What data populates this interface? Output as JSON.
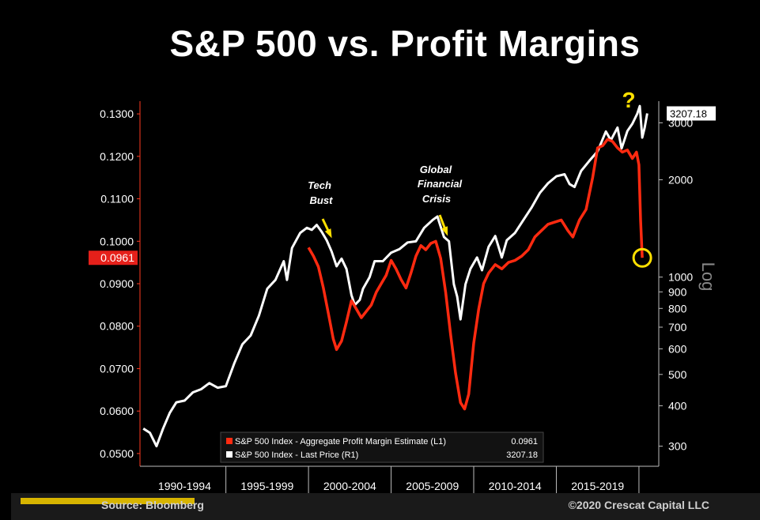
{
  "title": "S&P 500 vs. Profit Margins",
  "footer": {
    "source": "Source: Bloomberg",
    "copyright": "©2020 Crescat Capital LLC"
  },
  "colors": {
    "margin": "#ff2a10",
    "price": "#ffffff",
    "annotation": "#ffe000",
    "axis": "#ff3a20"
  },
  "chart_data": {
    "type": "line",
    "x_categories": [
      "1990-1994",
      "1995-1999",
      "2000-2004",
      "2005-2009",
      "2010-2014",
      "2015-2019"
    ],
    "left_axis": {
      "label": "",
      "ylim": [
        0.047,
        0.133
      ],
      "ticks": [
        "0.0500",
        "0.0600",
        "0.0700",
        "0.0800",
        "0.0900",
        "0.1000",
        "0.1100",
        "0.1200",
        "0.1300"
      ],
      "current_value": "0.0961"
    },
    "right_axis": {
      "label": "Log",
      "scale": "log",
      "ylim": [
        260,
        3500
      ],
      "ticks": [
        "300",
        "400",
        "500",
        "600",
        "700",
        "800",
        "900",
        "1000",
        "2000",
        "3000"
      ],
      "current_value": "3207.18"
    },
    "series": [
      {
        "name": "S&P 500 Index - Aggregate Profit Margin Estimate (L1)",
        "last": "0.0961",
        "axis": "left",
        "points": [
          [
            2000.0,
            0.0985
          ],
          [
            2000.3,
            0.0965
          ],
          [
            2000.6,
            0.094
          ],
          [
            2000.9,
            0.089
          ],
          [
            2001.2,
            0.083
          ],
          [
            2001.5,
            0.077
          ],
          [
            2001.7,
            0.0745
          ],
          [
            2002.0,
            0.0765
          ],
          [
            2002.3,
            0.081
          ],
          [
            2002.6,
            0.086
          ],
          [
            2002.9,
            0.084
          ],
          [
            2003.2,
            0.082
          ],
          [
            2003.5,
            0.0835
          ],
          [
            2003.8,
            0.085
          ],
          [
            2004.1,
            0.088
          ],
          [
            2004.4,
            0.09
          ],
          [
            2004.7,
            0.092
          ],
          [
            2005.0,
            0.0955
          ],
          [
            2005.3,
            0.0935
          ],
          [
            2005.6,
            0.091
          ],
          [
            2005.9,
            0.089
          ],
          [
            2006.2,
            0.0925
          ],
          [
            2006.5,
            0.0965
          ],
          [
            2006.8,
            0.099
          ],
          [
            2007.1,
            0.098
          ],
          [
            2007.4,
            0.0995
          ],
          [
            2007.7,
            0.1
          ],
          [
            2008.0,
            0.096
          ],
          [
            2008.3,
            0.088
          ],
          [
            2008.6,
            0.078
          ],
          [
            2008.9,
            0.069
          ],
          [
            2009.2,
            0.062
          ],
          [
            2009.45,
            0.0605
          ],
          [
            2009.7,
            0.064
          ],
          [
            2010.0,
            0.076
          ],
          [
            2010.3,
            0.084
          ],
          [
            2010.6,
            0.09
          ],
          [
            2010.9,
            0.0925
          ],
          [
            2011.3,
            0.0945
          ],
          [
            2011.7,
            0.0935
          ],
          [
            2012.1,
            0.095
          ],
          [
            2012.5,
            0.0955
          ],
          [
            2012.9,
            0.0965
          ],
          [
            2013.3,
            0.098
          ],
          [
            2013.7,
            0.101
          ],
          [
            2014.1,
            0.1025
          ],
          [
            2014.5,
            0.104
          ],
          [
            2014.9,
            0.1045
          ],
          [
            2015.3,
            0.105
          ],
          [
            2015.7,
            0.1025
          ],
          [
            2016.0,
            0.101
          ],
          [
            2016.4,
            0.105
          ],
          [
            2016.8,
            0.1075
          ],
          [
            2017.2,
            0.115
          ],
          [
            2017.5,
            0.122
          ],
          [
            2017.8,
            0.1225
          ],
          [
            2018.1,
            0.124
          ],
          [
            2018.4,
            0.1235
          ],
          [
            2018.7,
            0.122
          ],
          [
            2019.0,
            0.121
          ],
          [
            2019.3,
            0.1215
          ],
          [
            2019.6,
            0.1195
          ],
          [
            2019.85,
            0.121
          ],
          [
            2020.0,
            0.118
          ],
          [
            2020.1,
            0.105
          ],
          [
            2020.2,
            0.0961
          ]
        ]
      },
      {
        "name": "S&P 500 Index - Last Price (R1)",
        "last": "3207.18",
        "axis": "right",
        "points": [
          [
            1990.0,
            340
          ],
          [
            1990.4,
            330
          ],
          [
            1990.8,
            300
          ],
          [
            1991.2,
            340
          ],
          [
            1991.6,
            380
          ],
          [
            1992.0,
            410
          ],
          [
            1992.5,
            415
          ],
          [
            1993.0,
            440
          ],
          [
            1993.5,
            450
          ],
          [
            1994.0,
            470
          ],
          [
            1994.5,
            455
          ],
          [
            1995.0,
            460
          ],
          [
            1995.5,
            540
          ],
          [
            1996.0,
            620
          ],
          [
            1996.5,
            660
          ],
          [
            1997.0,
            760
          ],
          [
            1997.5,
            920
          ],
          [
            1998.0,
            980
          ],
          [
            1998.5,
            1120
          ],
          [
            1998.7,
            980
          ],
          [
            1999.0,
            1230
          ],
          [
            1999.5,
            1370
          ],
          [
            1999.9,
            1420
          ],
          [
            2000.2,
            1400
          ],
          [
            2000.5,
            1450
          ],
          [
            2000.8,
            1380
          ],
          [
            2001.1,
            1300
          ],
          [
            2001.4,
            1200
          ],
          [
            2001.7,
            1080
          ],
          [
            2002.0,
            1140
          ],
          [
            2002.3,
            1060
          ],
          [
            2002.6,
            880
          ],
          [
            2002.8,
            820
          ],
          [
            2003.1,
            850
          ],
          [
            2003.3,
            920
          ],
          [
            2003.7,
            1000
          ],
          [
            2004.0,
            1120
          ],
          [
            2004.5,
            1120
          ],
          [
            2005.0,
            1190
          ],
          [
            2005.5,
            1220
          ],
          [
            2006.0,
            1280
          ],
          [
            2006.5,
            1290
          ],
          [
            2007.0,
            1420
          ],
          [
            2007.5,
            1500
          ],
          [
            2007.8,
            1540
          ],
          [
            2008.2,
            1330
          ],
          [
            2008.5,
            1290
          ],
          [
            2008.8,
            950
          ],
          [
            2009.0,
            870
          ],
          [
            2009.2,
            740
          ],
          [
            2009.5,
            950
          ],
          [
            2009.8,
            1060
          ],
          [
            2010.2,
            1150
          ],
          [
            2010.5,
            1050
          ],
          [
            2010.9,
            1240
          ],
          [
            2011.3,
            1340
          ],
          [
            2011.7,
            1150
          ],
          [
            2012.0,
            1300
          ],
          [
            2012.5,
            1370
          ],
          [
            2013.0,
            1500
          ],
          [
            2013.5,
            1640
          ],
          [
            2014.0,
            1820
          ],
          [
            2014.5,
            1950
          ],
          [
            2015.0,
            2050
          ],
          [
            2015.5,
            2080
          ],
          [
            2015.8,
            1940
          ],
          [
            2016.1,
            1900
          ],
          [
            2016.5,
            2130
          ],
          [
            2017.0,
            2290
          ],
          [
            2017.5,
            2450
          ],
          [
            2018.0,
            2820
          ],
          [
            2018.3,
            2650
          ],
          [
            2018.7,
            2900
          ],
          [
            2018.95,
            2500
          ],
          [
            2019.3,
            2830
          ],
          [
            2019.6,
            2980
          ],
          [
            2019.9,
            3200
          ],
          [
            2020.05,
            3380
          ],
          [
            2020.2,
            2700
          ],
          [
            2020.35,
            2900
          ],
          [
            2020.5,
            3207
          ]
        ]
      }
    ],
    "annotations": [
      {
        "text": "Tech",
        "style": "italic"
      },
      {
        "text": "Bust",
        "style": "italic"
      },
      {
        "text": "Global",
        "style": "italic"
      },
      {
        "text": "Financial",
        "style": "italic"
      },
      {
        "text": "Crisis",
        "style": "italic"
      },
      {
        "text": "?",
        "style": "question"
      }
    ]
  }
}
